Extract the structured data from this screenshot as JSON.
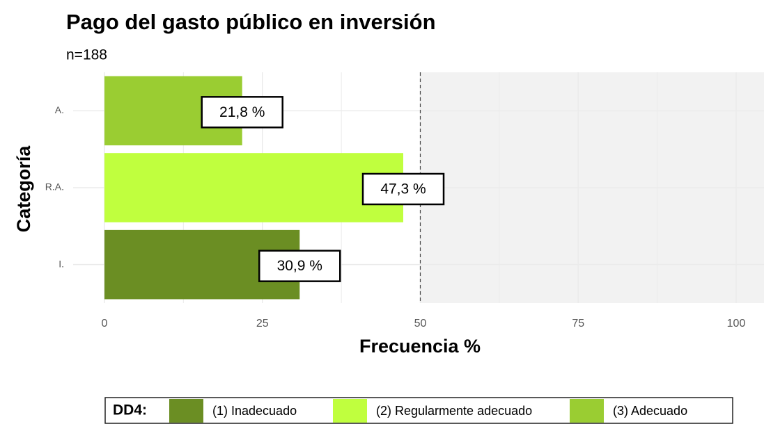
{
  "chart_data": {
    "type": "barh",
    "title": "Pago del gasto público en inversión",
    "subtitle": "n=188",
    "xlabel": "Frecuencia %",
    "ylabel": "Categoría",
    "categories": [
      "I.",
      "R.A.",
      "A."
    ],
    "values": [
      30.9,
      47.3,
      21.8
    ],
    "value_labels": [
      "30,9 %",
      "47,3 %",
      "21,8 %"
    ],
    "colors": [
      "#6b8e23",
      "#c0ff3e",
      "#9acd32"
    ],
    "xlim": [
      0,
      100
    ],
    "xticks": [
      0,
      25,
      50,
      75,
      100
    ],
    "reference_line": 50,
    "grid": true,
    "legend": {
      "title": "DD4:",
      "position": "bottom",
      "labels": [
        "(1) Inadecuado",
        "(2) Regularmente adecuado",
        "(3) Adecuado"
      ]
    }
  }
}
